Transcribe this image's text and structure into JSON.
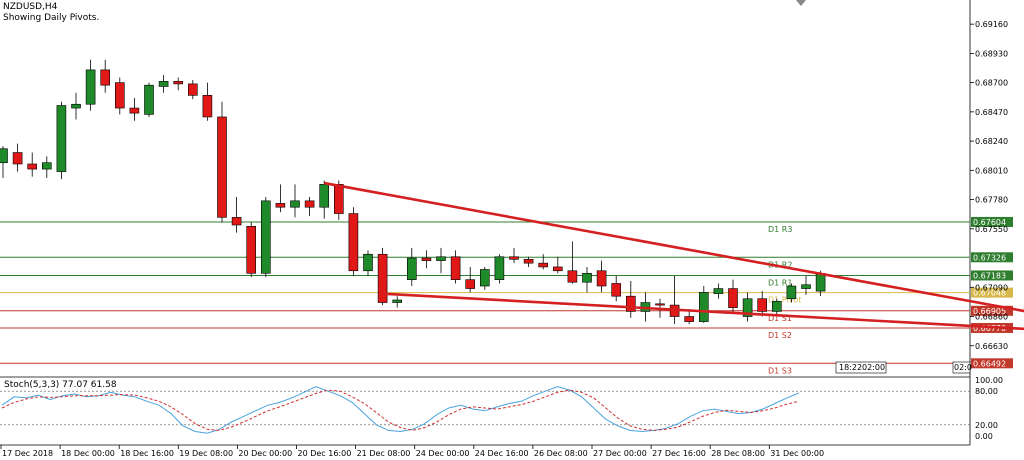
{
  "header": {
    "symbol": "NZDUSD,H4",
    "subtitle": "Showing Daily Pivots."
  },
  "stoch_label": "Stoch(5,3,3) 77.07 61.58",
  "stoch_levels": [
    "100.00",
    "80.00",
    "20.00",
    "0.00"
  ],
  "time_box": [
    "18:22",
    "02:00",
    "02:0"
  ],
  "chart_data": {
    "type": "candlestick",
    "ylim": [
      0.664,
      0.6935
    ],
    "price_ticks": [
      "0.69160",
      "0.68930",
      "0.68700",
      "0.68470",
      "0.68240",
      "0.68010",
      "0.67780",
      "0.67550",
      "0.67090",
      "0.66860",
      "0.66630"
    ],
    "x_labels": [
      "17 Dec 2018",
      "18 Dec 00:00",
      "18 Dec 16:00",
      "19 Dec 08:00",
      "20 Dec 00:00",
      "20 Dec 16:00",
      "21 Dec 08:00",
      "24 Dec 00:00",
      "24 Dec 16:00",
      "26 Dec 08:00",
      "27 Dec 00:00",
      "27 Dec 16:00",
      "28 Dec 08:00",
      "31 Dec 00:00"
    ],
    "pivots": [
      {
        "name": "D1 R3",
        "value": 0.67604,
        "label": "0.67604",
        "color": "#2f7d2f"
      },
      {
        "name": "D1 R2",
        "value": 0.67326,
        "label": "0.67326",
        "color": "#2f7d2f"
      },
      {
        "name": "D1 R1",
        "value": 0.67183,
        "label": "0.67183",
        "color": "#2f7d2f"
      },
      {
        "name": "D1 Pivot",
        "value": 0.67048,
        "label": "0.67048",
        "color": "#d8b84a"
      },
      {
        "name": "D1 S1",
        "value": 0.66905,
        "label": "0.66905",
        "color": "#c0392b"
      },
      {
        "name": "D1 S2",
        "value": 0.6677,
        "label": "0.66770",
        "color": "#c0392b"
      },
      {
        "name": "D1 S3",
        "value": 0.66492,
        "label": "0.66492",
        "color": "#c0392b"
      }
    ],
    "candles": [
      [
        0.6807,
        0.682,
        0.6795,
        0.6818
      ],
      [
        0.6815,
        0.6822,
        0.68,
        0.6806
      ],
      [
        0.6806,
        0.6815,
        0.6796,
        0.6802
      ],
      [
        0.6802,
        0.6812,
        0.6795,
        0.6807
      ],
      [
        0.68,
        0.6855,
        0.6794,
        0.6852
      ],
      [
        0.685,
        0.6862,
        0.6841,
        0.6853
      ],
      [
        0.6853,
        0.6888,
        0.6848,
        0.688
      ],
      [
        0.688,
        0.6888,
        0.6862,
        0.6868
      ],
      [
        0.687,
        0.6874,
        0.6845,
        0.685
      ],
      [
        0.685,
        0.6858,
        0.684,
        0.6846
      ],
      [
        0.6845,
        0.687,
        0.6843,
        0.6868
      ],
      [
        0.6867,
        0.6876,
        0.6862,
        0.6871
      ],
      [
        0.6871,
        0.6874,
        0.6864,
        0.6869
      ],
      [
        0.6869,
        0.6872,
        0.6857,
        0.686
      ],
      [
        0.686,
        0.687,
        0.684,
        0.6843
      ],
      [
        0.6843,
        0.6855,
        0.676,
        0.6764
      ],
      [
        0.6764,
        0.678,
        0.6752,
        0.6758
      ],
      [
        0.6757,
        0.676,
        0.6717,
        0.672
      ],
      [
        0.672,
        0.678,
        0.6717,
        0.6777
      ],
      [
        0.6775,
        0.679,
        0.6768,
        0.6772
      ],
      [
        0.6772,
        0.679,
        0.6764,
        0.6777
      ],
      [
        0.6777,
        0.678,
        0.6765,
        0.6772
      ],
      [
        0.6772,
        0.6793,
        0.6763,
        0.679
      ],
      [
        0.679,
        0.6793,
        0.6762,
        0.6767
      ],
      [
        0.6767,
        0.6772,
        0.6718,
        0.6722
      ],
      [
        0.6722,
        0.6738,
        0.6718,
        0.6735
      ],
      [
        0.6735,
        0.674,
        0.6695,
        0.6697
      ],
      [
        0.6697,
        0.6702,
        0.6693,
        0.6699
      ],
      [
        0.6715,
        0.674,
        0.671,
        0.6732
      ],
      [
        0.6732,
        0.6738,
        0.6724,
        0.673
      ],
      [
        0.673,
        0.674,
        0.672,
        0.6733
      ],
      [
        0.6733,
        0.6738,
        0.6712,
        0.6715
      ],
      [
        0.6715,
        0.6725,
        0.6705,
        0.6708
      ],
      [
        0.671,
        0.6725,
        0.6707,
        0.6723
      ],
      [
        0.6715,
        0.6735,
        0.6712,
        0.6733
      ],
      [
        0.6733,
        0.674,
        0.6728,
        0.6731
      ],
      [
        0.6731,
        0.6733,
        0.6725,
        0.6728
      ],
      [
        0.6728,
        0.6735,
        0.6723,
        0.6725
      ],
      [
        0.6725,
        0.6733,
        0.672,
        0.6722
      ],
      [
        0.6722,
        0.6745,
        0.6712,
        0.6713
      ],
      [
        0.6713,
        0.6725,
        0.6705,
        0.672
      ],
      [
        0.6722,
        0.673,
        0.6705,
        0.671
      ],
      [
        0.6712,
        0.6718,
        0.6698,
        0.6702
      ],
      [
        0.6702,
        0.6714,
        0.6685,
        0.669
      ],
      [
        0.669,
        0.6705,
        0.6682,
        0.6697
      ],
      [
        0.6696,
        0.67,
        0.6685,
        0.6695
      ],
      [
        0.6695,
        0.6718,
        0.668,
        0.6686
      ],
      [
        0.6686,
        0.6692,
        0.668,
        0.6682
      ],
      [
        0.6682,
        0.671,
        0.6681,
        0.6705
      ],
      [
        0.6704,
        0.6712,
        0.67,
        0.6708
      ],
      [
        0.6708,
        0.6715,
        0.6688,
        0.6693
      ],
      [
        0.6686,
        0.6705,
        0.6682,
        0.67
      ],
      [
        0.67,
        0.6706,
        0.6686,
        0.669
      ],
      [
        0.669,
        0.67,
        0.6687,
        0.6698
      ],
      [
        0.67,
        0.6712,
        0.6697,
        0.671
      ],
      [
        0.6708,
        0.6718,
        0.6703,
        0.6711
      ],
      [
        0.6706,
        0.6722,
        0.6702,
        0.672
      ]
    ],
    "trendlines": [
      {
        "from": [
          22,
          0.6791
        ],
        "to": [
          72,
          0.6686
        ]
      },
      {
        "from": [
          26,
          0.6704
        ],
        "to": [
          72,
          0.6675
        ]
      }
    ],
    "stochastic": {
      "main": [
        55,
        70,
        68,
        73,
        65,
        72,
        75,
        70,
        72,
        78,
        73,
        70,
        62,
        55,
        40,
        18,
        8,
        5,
        12,
        25,
        35,
        45,
        55,
        60,
        68,
        78,
        88,
        80,
        72,
        60,
        40,
        20,
        10,
        8,
        12,
        22,
        38,
        50,
        55,
        48,
        45,
        52,
        58,
        62,
        72,
        80,
        88,
        82,
        70,
        50,
        30,
        18,
        10,
        8,
        10,
        14,
        22,
        35,
        45,
        48,
        44,
        40,
        42,
        48,
        58,
        68,
        77
      ],
      "signal": [
        50,
        60,
        66,
        70,
        69,
        70,
        72,
        72,
        72,
        73,
        74,
        73,
        68,
        62,
        52,
        38,
        22,
        12,
        10,
        16,
        25,
        35,
        45,
        52,
        60,
        68,
        76,
        82,
        80,
        70,
        58,
        42,
        25,
        15,
        10,
        15,
        25,
        38,
        48,
        52,
        50,
        48,
        52,
        56,
        62,
        70,
        78,
        82,
        78,
        68,
        50,
        32,
        18,
        12,
        10,
        12,
        16,
        25,
        35,
        42,
        46,
        44,
        42,
        45,
        50,
        57,
        62
      ]
    }
  }
}
